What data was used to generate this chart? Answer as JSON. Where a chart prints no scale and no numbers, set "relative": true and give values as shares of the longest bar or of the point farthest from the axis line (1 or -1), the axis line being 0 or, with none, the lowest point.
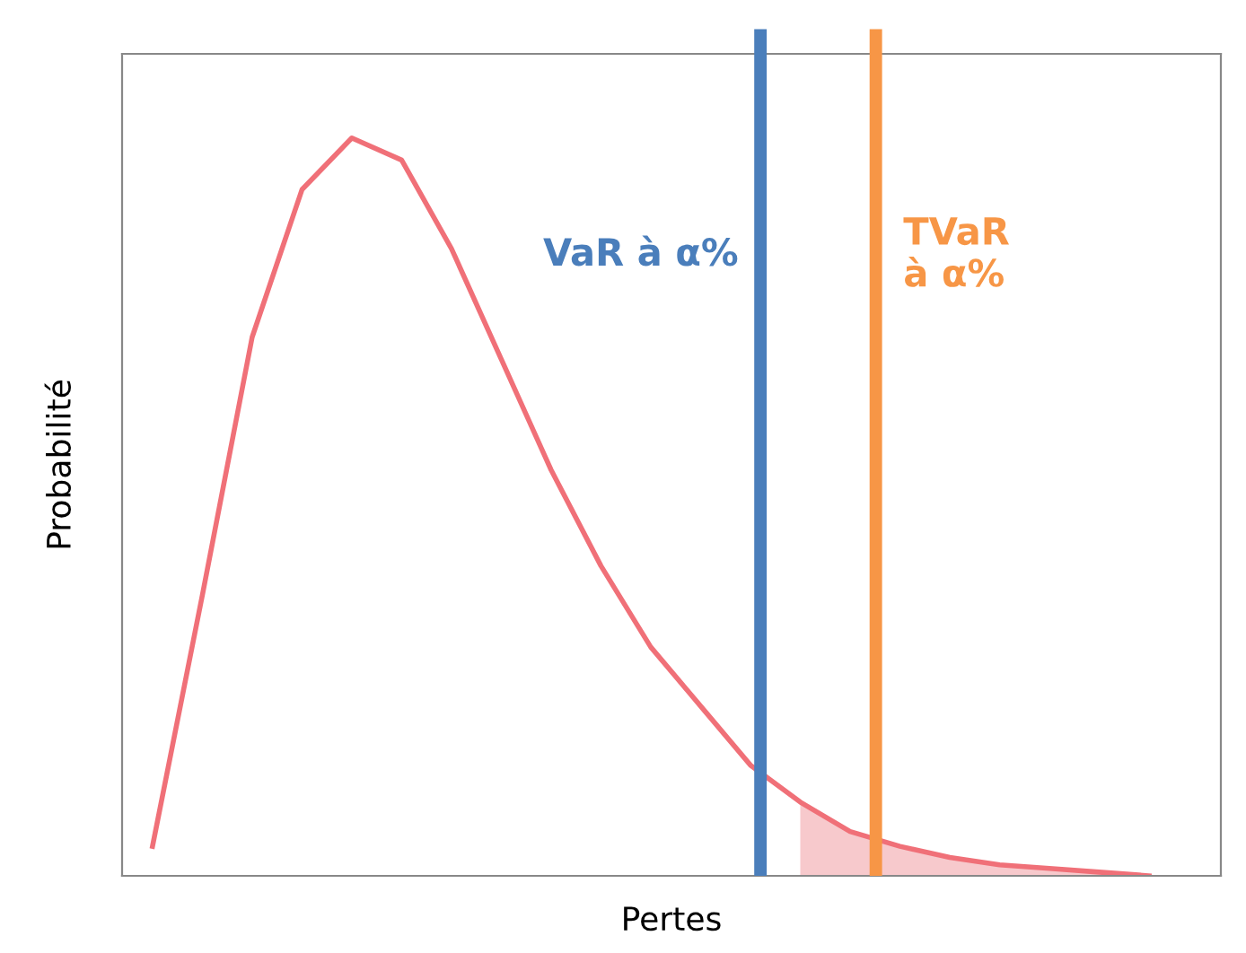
{
  "chart_data": {
    "type": "line",
    "relative": true,
    "xlabel": "Pertes",
    "ylabel": "Probabilité",
    "categories": [
      null,
      null,
      null,
      null,
      null,
      null,
      null,
      null,
      null,
      null,
      null,
      null,
      null,
      null,
      null,
      null,
      null,
      null,
      null,
      null,
      null
    ],
    "series": [
      {
        "color": "#f07078",
        "values": [
          0.04,
          0.38,
          0.73,
          0.93,
          1.0,
          0.97,
          0.85,
          0.7,
          0.55,
          0.42,
          0.31,
          0.23,
          0.15,
          0.1,
          0.06,
          0.04,
          0.025,
          0.015,
          0.01,
          0.005,
          0.0
        ]
      },
      {
        "type": "area",
        "color": "#f7c9cc",
        "values": [
          null,
          null,
          null,
          null,
          null,
          null,
          null,
          null,
          null,
          null,
          null,
          null,
          null,
          0.1,
          0.06,
          0.04,
          0.025,
          0.015,
          0.01,
          0.005,
          0.0
        ]
      }
    ],
    "annotations": [
      "VaR à α%",
      "TVaR\nà α%"
    ],
    "marker": "none",
    "line_style": "solid"
  }
}
